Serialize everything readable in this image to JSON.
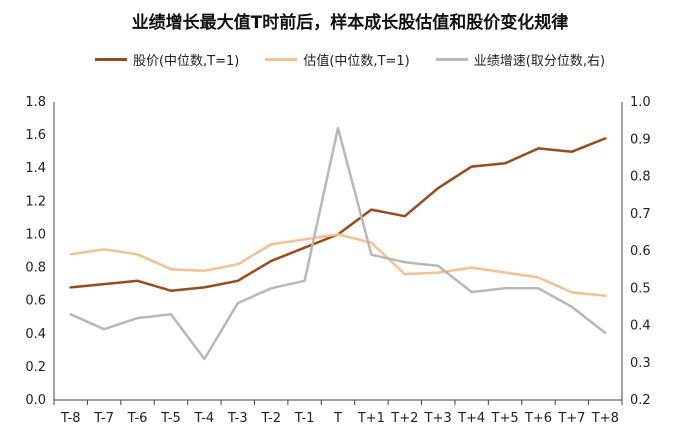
{
  "chart_data": {
    "type": "line",
    "title": "业绩增长最大值T时前后，样本成长股估值和股价变化规律",
    "categories": [
      "T-8",
      "T-7",
      "T-6",
      "T-5",
      "T-4",
      "T-3",
      "T-2",
      "T-1",
      "T",
      "T+1",
      "T+2",
      "T+3",
      "T+4",
      "T+5",
      "T+6",
      "T+7",
      "T+8"
    ],
    "left_axis": {
      "ylim": [
        0,
        1.8
      ],
      "ticks": [
        "0.0",
        "0.2",
        "0.4",
        "0.6",
        "0.8",
        "1.0",
        "1.2",
        "1.4",
        "1.6",
        "1.8"
      ]
    },
    "right_axis": {
      "ylim": [
        0.2,
        1.0
      ],
      "ticks": [
        "0.2",
        "0.3",
        "0.4",
        "0.5",
        "0.6",
        "0.7",
        "0.8",
        "0.9",
        "1.0"
      ]
    },
    "grid": false,
    "legend_position": "top",
    "series": [
      {
        "name": "股价(中位数,T=1)",
        "axis": "left",
        "color": "#9c4a1a",
        "values": [
          0.68,
          0.7,
          0.72,
          0.66,
          0.68,
          0.72,
          0.84,
          0.92,
          1.0,
          1.15,
          1.11,
          1.28,
          1.41,
          1.43,
          1.52,
          1.5,
          1.58
        ]
      },
      {
        "name": "估值(中位数,T=1)",
        "axis": "left",
        "color": "#f6c08f",
        "values": [
          0.88,
          0.91,
          0.88,
          0.79,
          0.78,
          0.82,
          0.94,
          0.97,
          1.0,
          0.95,
          0.76,
          0.77,
          0.8,
          0.77,
          0.74,
          0.65,
          0.63
        ]
      },
      {
        "name": "业绩增速(取分位数,右)",
        "axis": "right",
        "color": "#b8b8b8",
        "values": [
          0.43,
          0.39,
          0.42,
          0.43,
          0.31,
          0.46,
          0.5,
          0.52,
          0.93,
          0.59,
          0.57,
          0.56,
          0.49,
          0.5,
          0.5,
          0.45,
          0.38
        ]
      }
    ]
  }
}
